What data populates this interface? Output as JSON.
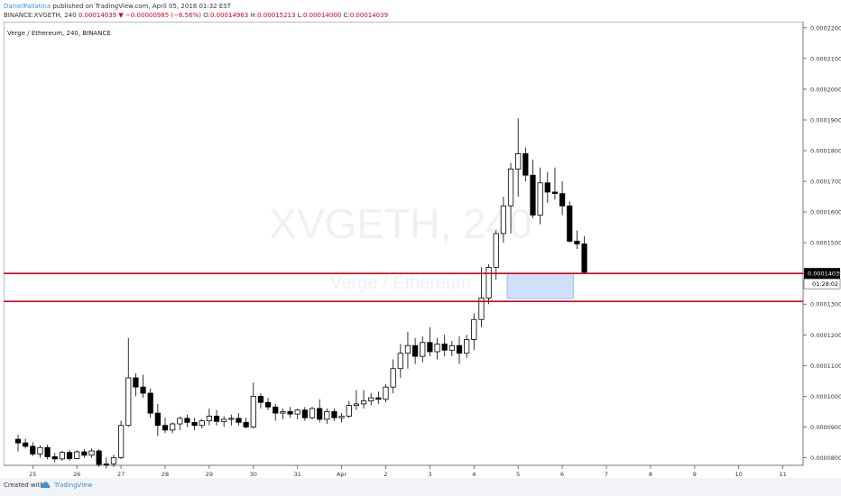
{
  "header": {
    "publisher": "DanielPallatina",
    "published_text": "published on TradingView.com, April 05, 2018 01:32 EST",
    "symbol": "BINANCE:XVGETH, 240",
    "last": "0.00014039",
    "change_arrow": "▼",
    "change": "−0.00000985 (−6.56%)",
    "open_label": "O:",
    "open": "0.00014963",
    "high_label": "H:",
    "high": "0.00015213",
    "low_label": "L:",
    "low": "0.00014000",
    "close_label": "C:",
    "close": "0.00014039"
  },
  "footer": {
    "created_with": "Created with",
    "brand": "TradingView"
  },
  "chart_data": {
    "type": "candlestick",
    "title": "Verge / Ethereum, 240, BINANCE",
    "watermark_symbol": "XVGETH, 240",
    "watermark_name": "Verge / Ethereum",
    "ylim": [
      7.75e-05,
      0.000222
    ],
    "y_ticks": [
      "0.00008000",
      "0.00009000",
      "0.00010000",
      "0.00011000",
      "0.00012000",
      "0.00013000",
      "0.00014000",
      "0.00015000",
      "0.00016000",
      "0.00017000",
      "0.00018000",
      "0.00019000",
      "0.00020000",
      "0.00021000",
      "0.00022000"
    ],
    "x_ticks": [
      {
        "label": "25",
        "i": 2
      },
      {
        "label": "26",
        "i": 8
      },
      {
        "label": "27",
        "i": 14
      },
      {
        "label": "28",
        "i": 20
      },
      {
        "label": "29",
        "i": 26
      },
      {
        "label": "30",
        "i": 32
      },
      {
        "label": "31",
        "i": 38
      },
      {
        "label": "Apr",
        "i": 44
      },
      {
        "label": "2",
        "i": 50
      },
      {
        "label": "3",
        "i": 56
      },
      {
        "label": "4",
        "i": 62
      },
      {
        "label": "5",
        "i": 68
      },
      {
        "label": "6",
        "i": 74
      },
      {
        "label": "7",
        "i": 80
      },
      {
        "label": "8",
        "i": 86
      },
      {
        "label": "9",
        "i": 92
      },
      {
        "label": "10",
        "i": 98
      },
      {
        "label": "11",
        "i": 104
      }
    ],
    "last_price_label": "0.00014039",
    "countdown": "01:28:02",
    "colors": {
      "up": "#ffffff",
      "down": "#000000",
      "level_line": "#d0021b",
      "zone": "#c9daf8",
      "zone_border": "#8fb0e8"
    },
    "levels": [
      0.00014,
      0.0001309
    ],
    "zone": {
      "i_start": 66.5,
      "i_end": 75.5,
      "top": 0.00014,
      "bottom": 0.0001318
    },
    "candles": [
      [
        8.6e-05,
        8.75e-05,
        8.2e-05,
        8.48e-05
      ],
      [
        8.48e-05,
        8.62e-05,
        8.3e-05,
        8.37e-05
      ],
      [
        8.37e-05,
        8.5e-05,
        8.05e-05,
        8.12e-05
      ],
      [
        8.12e-05,
        8.4e-05,
        8e-05,
        8.33e-05
      ],
      [
        8.33e-05,
        8.42e-05,
        7.95e-05,
        8.03e-05
      ],
      [
        8.03e-05,
        8.15e-05,
        7.85e-05,
        7.96e-05
      ],
      [
        7.96e-05,
        8.22e-05,
        7.9e-05,
        8.17e-05
      ],
      [
        8.17e-05,
        8.25e-05,
        7.9e-05,
        7.97e-05
      ],
      [
        7.97e-05,
        8.25e-05,
        7.95e-05,
        8.19e-05
      ],
      [
        8.19e-05,
        8.28e-05,
        8e-05,
        8.08e-05
      ],
      [
        8.08e-05,
        8.3e-05,
        8e-05,
        8.22e-05
      ],
      [
        8.22e-05,
        8.27e-05,
        7.7e-05,
        7.78e-05
      ],
      [
        7.78e-05,
        8e-05,
        7.65e-05,
        7.8e-05
      ],
      [
        7.8e-05,
        8.1e-05,
        7.7e-05,
        8e-05
      ],
      [
        8e-05,
        9.2e-05,
        7.95e-05,
        9.05e-05
      ],
      [
        9.05e-05,
        0.000119,
        9e-05,
        0.000106
      ],
      [
        0.000106,
        0.0001075,
        0.0001,
        0.000103
      ],
      [
        0.000103,
        0.000107,
        9.95e-05,
        0.000101
      ],
      [
        0.000101,
        0.0001025,
        9.3e-05,
        9.45e-05
      ],
      [
        9.45e-05,
        9.75e-05,
        8.7e-05,
        9.05e-05
      ],
      [
        9.05e-05,
        9.3e-05,
        8.8e-05,
        8.9e-05
      ],
      [
        8.9e-05,
        9.15e-05,
        8.8e-05,
        9.1e-05
      ],
      [
        9.1e-05,
        9.35e-05,
        8.9e-05,
        9.28e-05
      ],
      [
        9.28e-05,
        9.4e-05,
        9e-05,
        9.15e-05
      ],
      [
        9.15e-05,
        9.3e-05,
        8.9e-05,
        9.05e-05
      ],
      [
        9.05e-05,
        9.25e-05,
        8.95e-05,
        9.2e-05
      ],
      [
        9.2e-05,
        9.6e-05,
        9.05e-05,
        9.35e-05
      ],
      [
        9.35e-05,
        9.55e-05,
        9.05e-05,
        9.18e-05
      ],
      [
        9.18e-05,
        9.35e-05,
        9e-05,
        9.25e-05
      ],
      [
        9.25e-05,
        9.4e-05,
        9.05e-05,
        9.28e-05
      ],
      [
        9.28e-05,
        9.45e-05,
        9.05e-05,
        9.15e-05
      ],
      [
        9.15e-05,
        9.3e-05,
        8.95e-05,
        9e-05
      ],
      [
        9e-05,
        0.0001045,
        8.95e-05,
        0.0001
      ],
      [
        0.0001,
        0.000101,
        9.6e-05,
        9.8e-05
      ],
      [
        9.8e-05,
        9.95e-05,
        9.55e-05,
        9.65e-05
      ],
      [
        9.65e-05,
        9.75e-05,
        9.2e-05,
        9.45e-05
      ],
      [
        9.45e-05,
        9.6e-05,
        9.25e-05,
        9.5e-05
      ],
      [
        9.5e-05,
        9.65e-05,
        9.3e-05,
        9.42e-05
      ],
      [
        9.42e-05,
        9.6e-05,
        9.25e-05,
        9.55e-05
      ],
      [
        9.55e-05,
        9.65e-05,
        9.2e-05,
        9.3e-05
      ],
      [
        9.3e-05,
        9.65e-05,
        9.25e-05,
        9.6e-05
      ],
      [
        9.6e-05,
        9.9e-05,
        9.15e-05,
        9.25e-05
      ],
      [
        9.25e-05,
        9.6e-05,
        9.1e-05,
        9.5e-05
      ],
      [
        9.5e-05,
        9.6e-05,
        9.2e-05,
        9.3e-05
      ],
      [
        9.3e-05,
        9.45e-05,
        9.15e-05,
        9.35e-05
      ],
      [
        9.35e-05,
        9.85e-05,
        9.3e-05,
        9.7e-05
      ],
      [
        9.7e-05,
        0.000102,
        9.55e-05,
        9.75e-05
      ],
      [
        9.75e-05,
        0.000102,
        9.6e-05,
        9.85e-05
      ],
      [
        9.85e-05,
        0.000101,
        9.7e-05,
        9.95e-05
      ],
      [
        9.95e-05,
        0.0001015,
        9.75e-05,
        9.9e-05
      ],
      [
        9.9e-05,
        0.000104,
        9.8e-05,
        0.000103
      ],
      [
        0.000103,
        0.000112,
        0.000101,
        0.000109
      ],
      [
        0.000109,
        0.000117,
        0.000106,
        0.000114
      ],
      [
        0.000114,
        0.000121,
        0.000109,
        0.0001165
      ],
      [
        0.0001165,
        0.000119,
        0.0001105,
        0.000113
      ],
      [
        0.000113,
        0.0001195,
        0.000111,
        0.0001175
      ],
      [
        0.0001175,
        0.0001225,
        0.000113,
        0.0001145
      ],
      [
        0.0001145,
        0.000119,
        0.000112,
        0.000117
      ],
      [
        0.000117,
        0.00012,
        0.000113,
        0.000115
      ],
      [
        0.000115,
        0.000118,
        0.000113,
        0.0001165
      ],
      [
        0.0001165,
        0.0001195,
        0.0001105,
        0.000114
      ],
      [
        0.000114,
        0.00012,
        0.0001125,
        0.0001185
      ],
      [
        0.0001185,
        0.000127,
        0.000115,
        0.000125
      ],
      [
        0.000125,
        0.000142,
        0.0001225,
        0.000132
      ],
      [
        0.000132,
        0.000143,
        0.00013,
        0.000142
      ],
      [
        0.000142,
        0.000154,
        0.000138,
        0.000153
      ],
      [
        0.000153,
        0.000165,
        0.00015,
        0.000162
      ],
      [
        0.000162,
        0.000176,
        0.000153,
        0.000174
      ],
      [
        0.000174,
        0.0001905,
        0.000165,
        0.000179
      ],
      [
        0.000179,
        0.000181,
        0.00017,
        0.000172
      ],
      [
        0.000172,
        0.000177,
        0.000158,
        0.000159
      ],
      [
        0.000159,
        0.0001745,
        0.000156,
        0.0001695
      ],
      [
        0.0001695,
        0.000173,
        0.000163,
        0.0001665
      ],
      [
        0.0001665,
        0.0001745,
        0.000164,
        0.000166
      ],
      [
        0.000166,
        0.00017,
        0.000159,
        0.000162
      ],
      [
        0.000162,
        0.0001635,
        0.00015,
        0.0001505
      ],
      [
        0.0001505,
        0.000154,
        0.000148,
        0.0001496
      ],
      [
        0.0001496,
        0.0001521,
        0.00014,
        0.0001404
      ]
    ]
  }
}
